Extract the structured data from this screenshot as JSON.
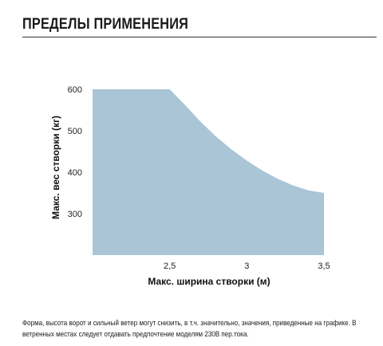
{
  "heading": "ПРЕДЕЛЫ ПРИМЕНЕНИЯ",
  "caption": "Форма, высота ворот и сильный ветер могут снизить, в т.ч. значительно, значения, приведенные на графике. В ветренных местах следует отдавать предпочтение моделям 230В пер.тока.",
  "colors": {
    "fill": "#a9c5d6",
    "rule": "#333333"
  },
  "chart_data": {
    "type": "area",
    "xlabel": "Макс. ширина створки (м)",
    "ylabel": "Макс. вес створки (кг)",
    "xlim": [
      2.0,
      3.5
    ],
    "ylim": [
      200,
      600
    ],
    "x_ticks": [
      2.5,
      3,
      3.5
    ],
    "x_tick_labels": [
      "2,5",
      "3",
      "3,5"
    ],
    "y_ticks": [
      300,
      400,
      500,
      600
    ],
    "y_tick_labels": [
      "300",
      "400",
      "500",
      "600"
    ],
    "grid": false,
    "series": [
      {
        "x": [
          2.0,
          2.5,
          2.6,
          2.7,
          2.8,
          2.9,
          3.0,
          3.1,
          3.2,
          3.3,
          3.4,
          3.5
        ],
        "values": [
          600,
          600,
          562,
          522,
          486,
          455,
          428,
          404,
          384,
          368,
          356,
          350
        ]
      }
    ]
  }
}
